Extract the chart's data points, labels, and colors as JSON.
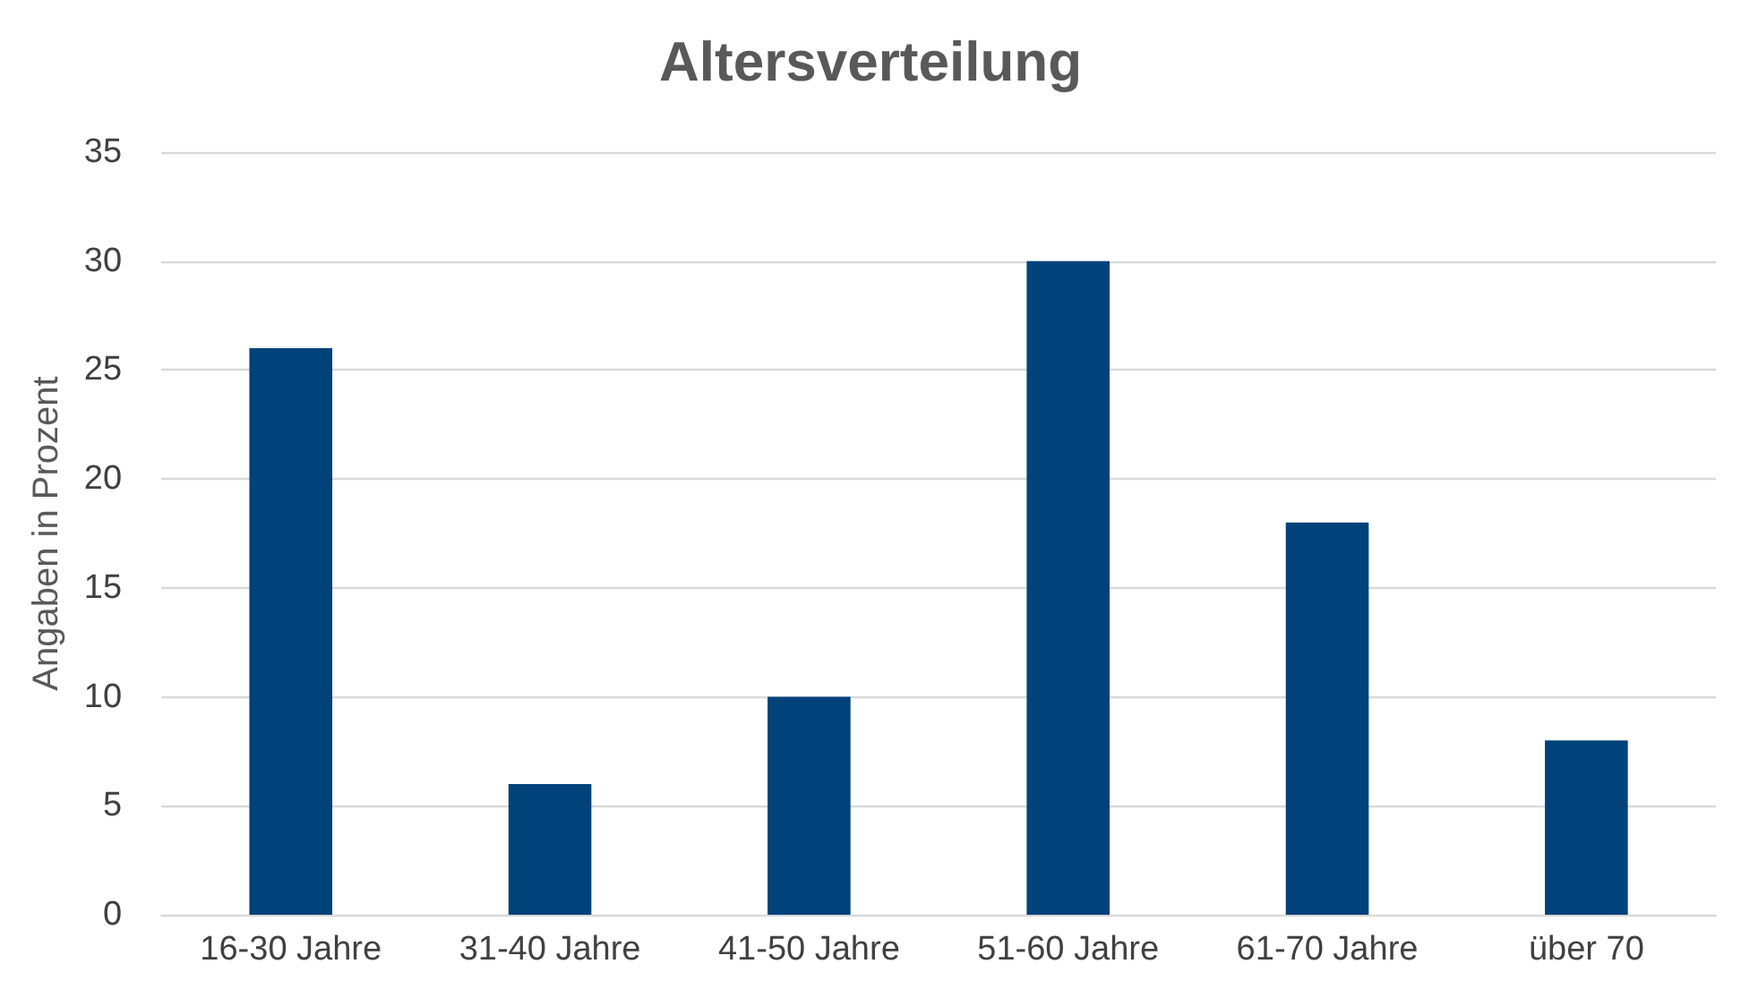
{
  "chart_data": {
    "type": "bar",
    "title": "Altersverteilung",
    "ylabel": "Angaben in Prozent",
    "categories": [
      "16-30 Jahre",
      "31-40 Jahre",
      "41-50 Jahre",
      "51-60 Jahre",
      "61-70 Jahre",
      "über 70"
    ],
    "values": [
      26,
      6,
      10,
      30,
      18,
      8
    ],
    "color": "#00427a",
    "ylim": [
      0,
      35
    ],
    "yticks": [
      0,
      5,
      10,
      15,
      20,
      25,
      30,
      35
    ],
    "grid": "y"
  }
}
